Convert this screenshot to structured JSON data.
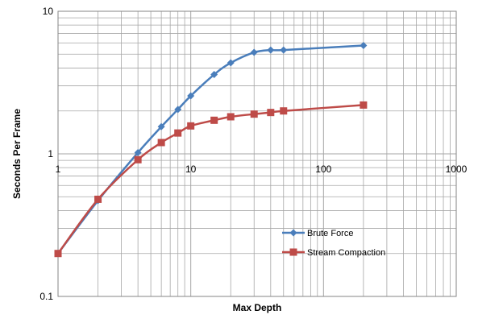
{
  "chart_data": {
    "type": "line",
    "xlabel": "Max Depth",
    "ylabel": "Seconds Per Frame",
    "xscale": "log",
    "yscale": "log",
    "xlim": [
      1,
      1000
    ],
    "ylim": [
      0.1,
      10
    ],
    "x_ticks": [
      "1",
      "10",
      "100",
      "1000"
    ],
    "y_ticks": [
      "0.1",
      "1",
      "10"
    ],
    "grid": "on (major and minor)",
    "legend": "lower-right",
    "series": [
      {
        "name": "Brute Force",
        "color": "#4a7ebb",
        "marker": "diamond",
        "x": [
          1,
          2,
          4,
          6,
          8,
          10,
          15,
          20,
          30,
          40,
          50,
          200
        ],
        "y": [
          0.2,
          0.47,
          1.02,
          1.55,
          2.05,
          2.55,
          3.6,
          4.35,
          5.15,
          5.35,
          5.35,
          5.75
        ]
      },
      {
        "name": "Stream Compaction",
        "color": "#be4b48",
        "marker": "square",
        "x": [
          1,
          2,
          4,
          6,
          8,
          10,
          15,
          20,
          30,
          40,
          50,
          200
        ],
        "y": [
          0.2,
          0.48,
          0.91,
          1.2,
          1.4,
          1.57,
          1.72,
          1.82,
          1.9,
          1.95,
          2.0,
          2.2
        ]
      }
    ]
  }
}
